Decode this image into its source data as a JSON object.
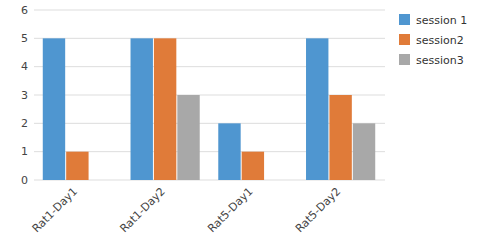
{
  "chart_data": {
    "type": "bar",
    "categories": [
      "Rat1-Day1",
      "Rat1-Day2",
      "Rat5-Day1",
      "Rat5-Day2"
    ],
    "series": [
      {
        "name": "session 1",
        "color": "#4f96d0",
        "values": [
          5,
          5,
          2,
          5
        ]
      },
      {
        "name": "session2",
        "color": "#e07b39",
        "values": [
          1,
          5,
          1,
          3
        ]
      },
      {
        "name": "session3",
        "color": "#a8a8a8",
        "values": [
          0,
          3,
          0,
          2
        ]
      }
    ],
    "ylim": [
      0,
      6
    ],
    "yticks": [
      0,
      1,
      2,
      3,
      4,
      5,
      6
    ],
    "grid": true,
    "legend": "right"
  }
}
